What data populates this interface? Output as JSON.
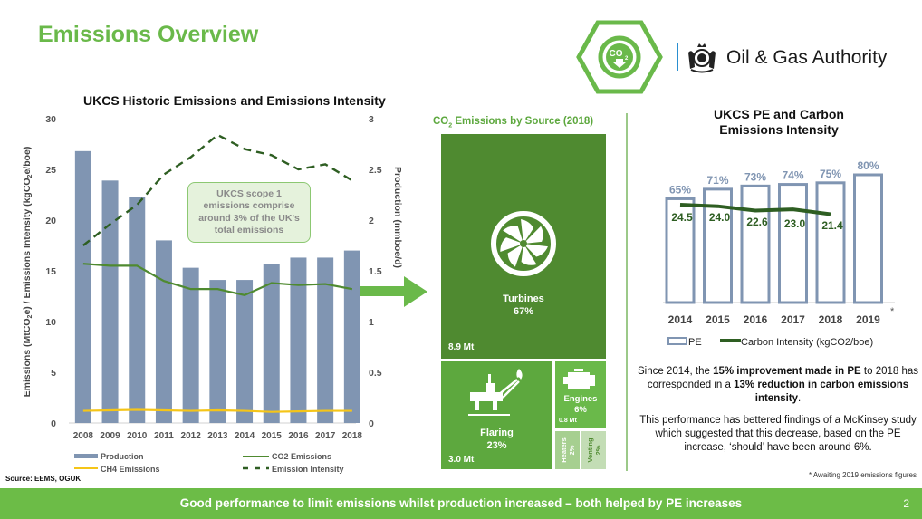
{
  "header": {
    "title": "Emissions Overview",
    "brand_name": "Oil & Gas Authority",
    "logo_badge_text": "CO2",
    "accent_color": "#6ab94a",
    "divider_color": "#2a8fd0"
  },
  "left_chart": {
    "title": "UKCS Historic Emissions and Emissions Intensity",
    "y_left_label": "Emissions (MtCO2e) / Emissions Intensity (kgCO2e/boe)",
    "y_right_label": "Production (mmboe/d)",
    "y_left_ticks": [
      "0",
      "5",
      "10",
      "15",
      "20",
      "25",
      "30"
    ],
    "y_right_ticks": [
      "0",
      "0.5",
      "1",
      "1.5",
      "2",
      "2.5",
      "3"
    ],
    "callout": "UKCS scope 1 emissions comprise around 3% of the UK's total emissions",
    "legend": {
      "production": "Production",
      "co2": "CO2 Emissions",
      "ch4": "CH4 Emissions",
      "intensity": "Emission Intensity"
    },
    "source": "Source: EEMS, OGUK"
  },
  "treemap": {
    "title_prefix": "CO",
    "title_sub": "2",
    "title_suffix": " Emissions by Source (2018)",
    "turbines": {
      "name": "Turbines",
      "pct": "67%",
      "mt": "8.9 Mt"
    },
    "flaring": {
      "name": "Flaring",
      "pct": "23%",
      "mt": "3.0 Mt"
    },
    "engines": {
      "name": "Engines",
      "pct": "6%",
      "mt": "0.8 Mt"
    },
    "heaters": {
      "name": "Heaters",
      "pct": "2%"
    },
    "venting": {
      "name": "Venting",
      "pct": "2%"
    }
  },
  "right_chart": {
    "title_line1": "UKCS PE and Carbon",
    "title_line2": "Emissions Intensity",
    "legend_pe": "PE",
    "legend_ci": "Carbon Intensity (kgCO2/boe)",
    "asterisk": "*"
  },
  "summary": {
    "p1_a": "Since 2014, the ",
    "p1_b": "15% improvement made in PE",
    "p1_c": " to 2018 has corresponded in a ",
    "p1_d": "13% reduction in carbon emissions intensity",
    "p1_e": ".",
    "p2": "This performance has bettered findings of a McKinsey study which suggested that this decrease, based on the PE increase, ‘should’ have been around 6%.",
    "footnote": "* Awaiting 2019 emissions figures"
  },
  "footer": {
    "text": "Good performance to limit emissions whilst production increased – both helped by PE increases",
    "page_number": "2",
    "color": "#6cbc47"
  },
  "chart_data": [
    {
      "type": "bar",
      "title": "UKCS Historic Emissions and Emissions Intensity",
      "categories": [
        "2008",
        "2009",
        "2010",
        "2011",
        "2012",
        "2013",
        "2014",
        "2015",
        "2016",
        "2017",
        "2018"
      ],
      "series": [
        {
          "name": "Production",
          "axis": "right",
          "kind": "bar",
          "color": "#8095b2",
          "values": [
            2.68,
            2.39,
            2.23,
            1.8,
            1.53,
            1.41,
            1.41,
            1.57,
            1.63,
            1.63,
            1.7
          ]
        },
        {
          "name": "CO2 Emissions",
          "axis": "left",
          "kind": "line",
          "color": "#4f8a30",
          "values": [
            15.7,
            15.5,
            15.5,
            14.0,
            13.2,
            13.2,
            12.6,
            13.8,
            13.6,
            13.7,
            13.2
          ]
        },
        {
          "name": "CH4 Emissions",
          "axis": "left",
          "kind": "line",
          "color": "#f5c518",
          "values": [
            1.2,
            1.25,
            1.3,
            1.25,
            1.2,
            1.25,
            1.2,
            1.1,
            1.15,
            1.2,
            1.2
          ]
        },
        {
          "name": "Emission Intensity",
          "axis": "left",
          "kind": "dashed-line",
          "color": "#2e5e22",
          "values": [
            17.5,
            19.6,
            21.5,
            24.5,
            26.2,
            28.4,
            27.0,
            26.4,
            25.0,
            25.5,
            23.9
          ]
        }
      ],
      "ylabel": "Emissions (MtCO2e) / Emissions Intensity (kgCO2e/boe)",
      "ylabel_right": "Production (mmboe/d)",
      "ylim": [
        0,
        30
      ],
      "ylim_right": [
        0,
        3
      ],
      "legend_position": "bottom",
      "grid": false,
      "annotations": [
        "UKCS scope 1 emissions comprise around 3% of the UK's total emissions"
      ]
    },
    {
      "type": "table",
      "title": "CO2 Emissions by Source (2018)",
      "categories": [
        "Turbines",
        "Flaring",
        "Engines",
        "Heaters",
        "Venting"
      ],
      "values": [
        67,
        23,
        6,
        2,
        2
      ],
      "unit": "%",
      "mt": {
        "Turbines": 8.9,
        "Flaring": 3.0,
        "Engines": 0.8
      },
      "note": "treemap"
    },
    {
      "type": "bar",
      "title": "UKCS PE and Carbon Emissions Intensity",
      "categories": [
        "2014",
        "2015",
        "2016",
        "2017",
        "2018",
        "2019"
      ],
      "category_labels": [
        "2014",
        "2015",
        "2016",
        "2017",
        "2018",
        "2019"
      ],
      "series": [
        {
          "name": "PE",
          "kind": "bar-outline",
          "color": "#8095b2",
          "values": [
            65,
            71,
            73,
            74,
            75,
            80
          ],
          "labels": [
            "65%",
            "71%",
            "73%",
            "74%",
            "75%",
            "80%"
          ]
        },
        {
          "name": "Carbon Intensity (kgCO2/boe)",
          "kind": "line",
          "color": "#2e5e22",
          "values": [
            24.5,
            24.0,
            22.6,
            23.0,
            21.4,
            null
          ],
          "labels": [
            "24.5",
            "24.0",
            "22.6",
            "23.0",
            "21.4"
          ]
        }
      ],
      "legend_position": "bottom",
      "grid": false,
      "annotations": [
        "* Awaiting 2019 emissions figures"
      ]
    }
  ]
}
